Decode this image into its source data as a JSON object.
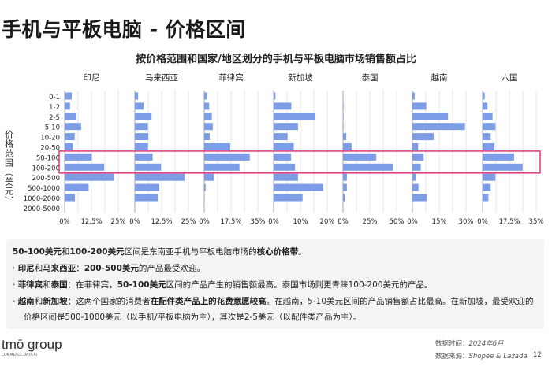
{
  "title": "手机与平板电脑 - 价格区间",
  "chart_data": {
    "type": "bar",
    "orientation": "horizontal",
    "layout": "small-multiples",
    "title": "按价格范围和国家/地区划分的手机与平板电脑市场销售额占比",
    "ylabel": "价格范围（美元）",
    "categories": [
      "0-1",
      "1-2",
      "2-5",
      "5-10",
      "10-20",
      "20-50",
      "50-100",
      "100-200",
      "200-500",
      "500-1000",
      "1000-2000",
      "2000-5000"
    ],
    "highlighted_categories": [
      "50-100",
      "100-200"
    ],
    "highlight_color": "#e0357a",
    "bar_color": "#7d9ee6",
    "grid": true,
    "panels": [
      {
        "name": "印尼",
        "xlim": [
          0,
          25
        ],
        "ticks": [
          "0%",
          "12.5%",
          "25%"
        ],
        "tick_values": [
          0,
          12.5,
          25
        ],
        "values": [
          3.3,
          2.5,
          5.5,
          7.7,
          4.7,
          3.8,
          12.7,
          18.4,
          23.0,
          11.2,
          4.8,
          0
        ]
      },
      {
        "name": "马来西亚",
        "xlim": [
          0,
          25
        ],
        "ticks": [
          "0%",
          "12.5%",
          "25%"
        ],
        "tick_values": [
          0,
          12.5,
          25
        ],
        "values": [
          1.5,
          4.1,
          7.8,
          6.1,
          6.3,
          6.1,
          8.3,
          12.2,
          23.2,
          11.3,
          10.7,
          0
        ]
      },
      {
        "name": "菲律宾",
        "xlim": [
          0,
          35
        ],
        "ticks": [
          "0%",
          "17.5%",
          "35%"
        ],
        "tick_values": [
          0,
          17.5,
          35
        ],
        "values": [
          1.9,
          3.2,
          5.0,
          5.6,
          3.6,
          16.9,
          29.7,
          23.0,
          6.3,
          0.9,
          0.2,
          0
        ]
      },
      {
        "name": "新加坡",
        "xlim": [
          0,
          20
        ],
        "ticks": [
          "0%",
          "10%",
          "20%"
        ],
        "tick_values": [
          0,
          10,
          20
        ],
        "values": [
          0.7,
          6.6,
          15.6,
          9.1,
          5.2,
          7.5,
          6.5,
          8.0,
          9.1,
          18.5,
          10.8,
          0
        ]
      },
      {
        "name": "泰国",
        "xlim": [
          0,
          50
        ],
        "ticks": [
          "0%",
          "25%",
          "50%"
        ],
        "tick_values": [
          0,
          25,
          50
        ],
        "values": [
          0.3,
          0.5,
          0.5,
          0.5,
          3.0,
          8.0,
          31.0,
          46.5,
          3.6,
          3.6,
          1.5,
          0
        ]
      },
      {
        "name": "越南",
        "xlim": [
          0,
          30
        ],
        "ticks": [
          "0%",
          "15%",
          "30%"
        ],
        "tick_values": [
          0,
          15,
          30
        ],
        "values": [
          1.3,
          7.8,
          19.9,
          29.4,
          11.9,
          3.2,
          6.3,
          4.7,
          2.1,
          3.4,
          8.1,
          0
        ]
      },
      {
        "name": "六国",
        "xlim": [
          0,
          35
        ],
        "ticks": [
          "0%",
          "17.5%",
          "35%"
        ],
        "tick_values": [
          0,
          17.5,
          35
        ],
        "values": [
          1.4,
          3.2,
          6.5,
          8.4,
          5.3,
          7.8,
          20.6,
          26.1,
          8.4,
          5.3,
          3.8,
          0
        ]
      }
    ]
  },
  "notes": [
    [
      {
        "t": "50-100美元",
        "b": true
      },
      {
        "t": "和",
        "b": false
      },
      {
        "t": "100-200美元",
        "b": true
      },
      {
        "t": "区间是东南亚手机与平板电脑市场的",
        "b": false
      },
      {
        "t": "核心价格带",
        "b": true
      },
      {
        "t": "。",
        "b": false
      }
    ],
    [
      {
        "t": "·  ",
        "b": false
      },
      {
        "t": "印尼",
        "b": true
      },
      {
        "t": "和",
        "b": false
      },
      {
        "t": "马来西亚",
        "b": true
      },
      {
        "t": "：",
        "b": false
      },
      {
        "t": "200-500美元",
        "b": true
      },
      {
        "t": "的产品最受欢迎。",
        "b": false
      }
    ],
    [
      {
        "t": "·  ",
        "b": false
      },
      {
        "t": "菲律宾",
        "b": true
      },
      {
        "t": "和",
        "b": false
      },
      {
        "t": "泰国",
        "b": true
      },
      {
        "t": "：在菲律宾，",
        "b": false
      },
      {
        "t": "50-100美元",
        "b": true
      },
      {
        "t": "区间的产品产生的销售额最高。泰国市场则更青睐100-200美元的产品。",
        "b": false
      }
    ],
    [
      {
        "t": "·  ",
        "b": false
      },
      {
        "t": "越南",
        "b": true
      },
      {
        "t": "和",
        "b": false
      },
      {
        "t": "新加坡",
        "b": true
      },
      {
        "t": "：这两个国家的消费者",
        "b": false
      },
      {
        "t": "在配件类产品上的花费意愿较高",
        "b": true
      },
      {
        "t": "。在越南，5-10美元区间的产品销售额占比最高。在新加坡，最受欢迎的",
        "b": false
      }
    ],
    [
      {
        "t": "价格区间是500-1000美元（以手机/平板电脑为主），其次是2-5美元（以配件类产品为主）。",
        "b": false
      }
    ]
  ],
  "footer": {
    "logo_main": "tmō group",
    "logo_sub": "COMMERCE.DATA.AI",
    "date_label": "数据时间：",
    "date_value": "2024年6月",
    "source_label": "数据来源：",
    "source_value": "Shopee & Lazada",
    "page": "12"
  }
}
